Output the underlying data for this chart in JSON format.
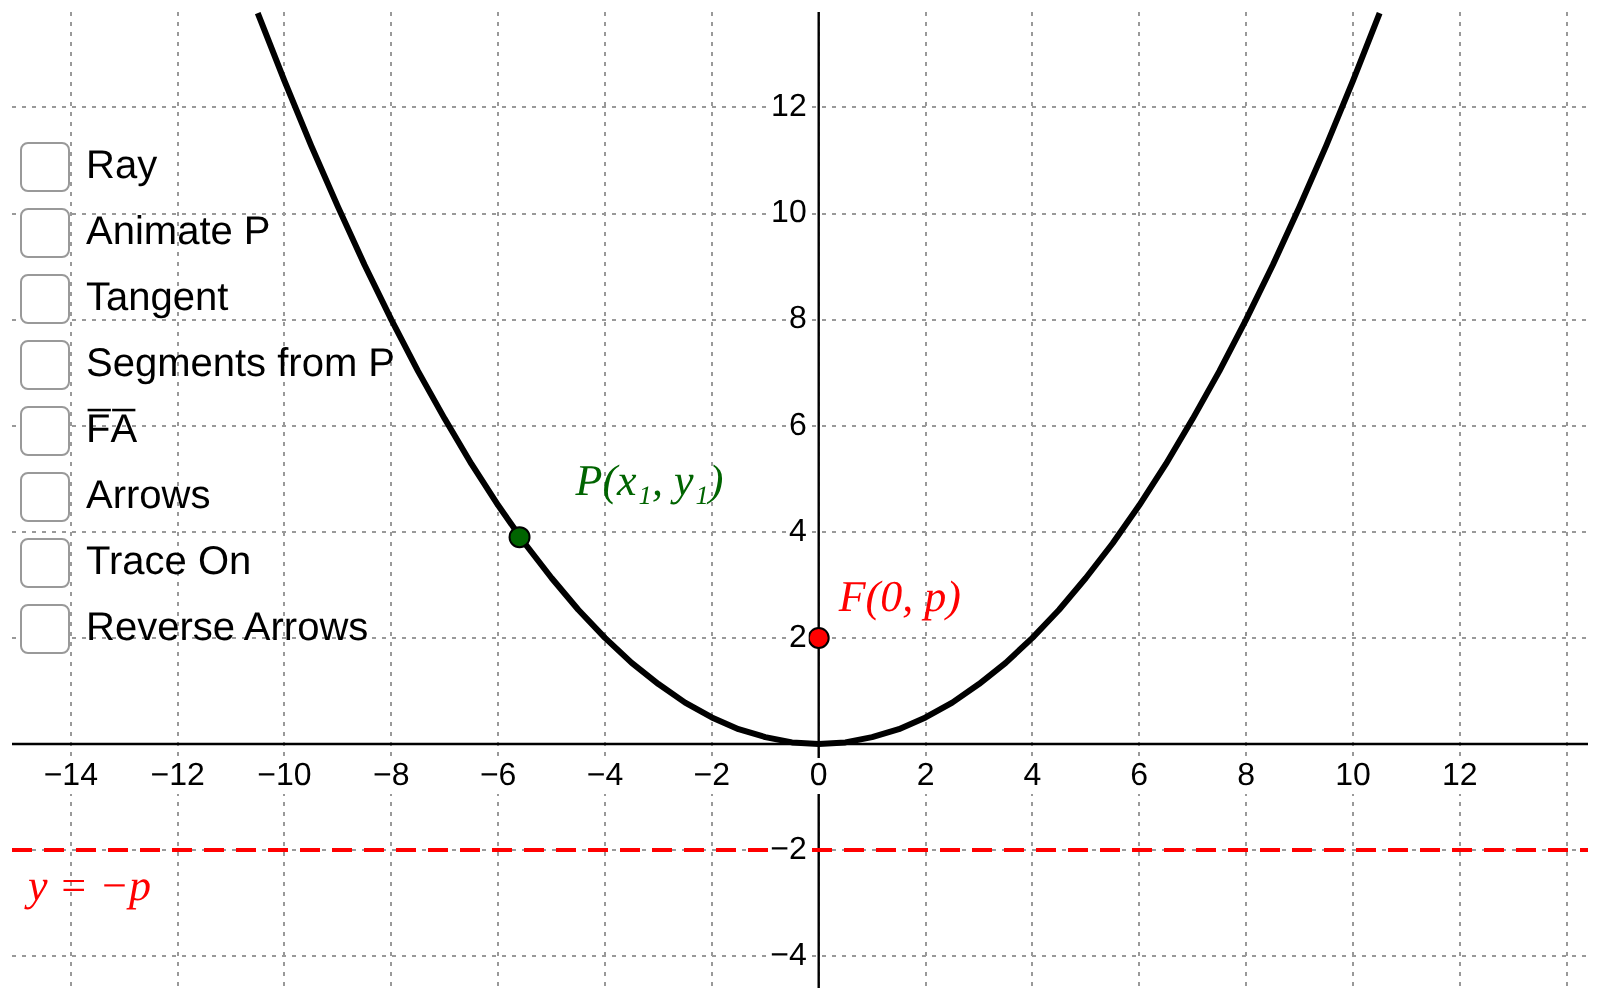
{
  "chart_data": {
    "type": "line",
    "series": [
      {
        "color": "#000000",
        "marker": "none",
        "x": [
          -10.5,
          -10,
          -9.5,
          -9,
          -8.5,
          -8,
          -7.5,
          -7,
          -6.5,
          -6,
          -5.5,
          -5,
          -4.5,
          -4,
          -3.5,
          -3,
          -2.5,
          -2,
          -1.5,
          -1,
          -0.5,
          0,
          0.5,
          1,
          1.5,
          2,
          2.5,
          3,
          3.5,
          4,
          4.5,
          5,
          5.5,
          6,
          6.5,
          7,
          7.5,
          8,
          8.5,
          9,
          9.5,
          10,
          10.5
        ],
        "values": [
          13.78,
          12.5,
          11.28,
          10.13,
          9.03,
          8,
          7.03,
          6.13,
          5.28,
          4.5,
          3.78,
          3.13,
          2.53,
          2,
          1.53,
          1.13,
          0.78,
          0.5,
          0.28,
          0.13,
          0.03,
          0,
          0.03,
          0.13,
          0.28,
          0.5,
          0.78,
          1.13,
          1.53,
          2,
          2.53,
          3.13,
          3.78,
          4.5,
          5.28,
          6.13,
          7.03,
          8,
          9.03,
          10.13,
          11.28,
          12.5,
          13.78
        ]
      },
      {
        "type": "scatter",
        "color": "#006400",
        "marker": "circle",
        "x": [
          -5.6
        ],
        "values": [
          3.9
        ]
      },
      {
        "type": "scatter",
        "color": "#ff0000",
        "marker": "circle",
        "x": [
          0
        ],
        "values": [
          2
        ]
      }
    ],
    "xlim": [
      -15.1,
      14.4
    ],
    "ylim": [
      -4.6,
      13.8
    ],
    "xticks": [
      {
        "value": -14,
        "label": "−14"
      },
      {
        "value": -12,
        "label": "−12"
      },
      {
        "value": -10,
        "label": "−10"
      },
      {
        "value": -8,
        "label": "−8"
      },
      {
        "value": -6,
        "label": "−6"
      },
      {
        "value": -4,
        "label": "−4"
      },
      {
        "value": -2,
        "label": "−2"
      },
      0,
      2,
      4,
      6,
      8,
      10,
      12,
      {
        "value": 14,
        "label": null
      }
    ],
    "yticks": [
      {
        "value": -4,
        "label": "−4"
      },
      {
        "value": -2,
        "label": "−2"
      },
      {
        "value": 0,
        "label": null
      },
      2,
      4,
      6,
      8,
      10,
      12
    ],
    "grid": true,
    "legend": false,
    "ref_lines": [
      {
        "axis": "y",
        "value": -2,
        "label": "y = −p",
        "color": "#ff0000",
        "line_style": "dashed"
      }
    ],
    "annotations": [
      {
        "text": "P(x₁, y₁)",
        "x": -5.6,
        "y": 3.9
      },
      {
        "text": "F(0, p)",
        "x": 0,
        "y": 2
      },
      "Ray",
      "Animate P",
      "Tangent",
      "Segments from P",
      "F̅A̅",
      "Arrows",
      "Trace On",
      "Reverse Arrows"
    ]
  }
}
